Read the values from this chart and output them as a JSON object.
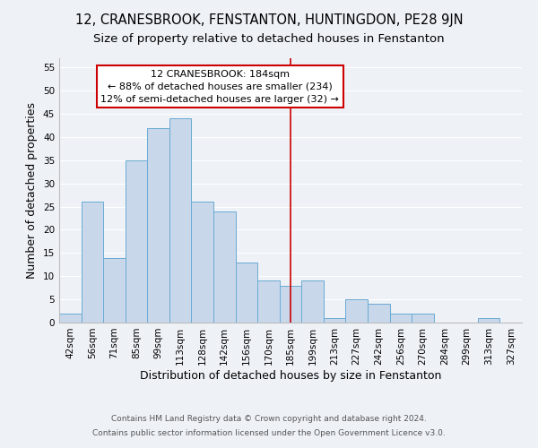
{
  "title": "12, CRANESBROOK, FENSTANTON, HUNTINGDON, PE28 9JN",
  "subtitle": "Size of property relative to detached houses in Fenstanton",
  "xlabel": "Distribution of detached houses by size in Fenstanton",
  "ylabel": "Number of detached properties",
  "footer_line1": "Contains HM Land Registry data © Crown copyright and database right 2024.",
  "footer_line2": "Contains public sector information licensed under the Open Government Licence v3.0.",
  "bin_labels": [
    "42sqm",
    "56sqm",
    "71sqm",
    "85sqm",
    "99sqm",
    "113sqm",
    "128sqm",
    "142sqm",
    "156sqm",
    "170sqm",
    "185sqm",
    "199sqm",
    "213sqm",
    "227sqm",
    "242sqm",
    "256sqm",
    "270sqm",
    "284sqm",
    "299sqm",
    "313sqm",
    "327sqm"
  ],
  "bar_values": [
    2,
    26,
    14,
    35,
    42,
    44,
    26,
    24,
    13,
    9,
    8,
    9,
    1,
    5,
    4,
    2,
    2,
    0,
    0,
    1,
    0
  ],
  "bar_color": "#c8d8ea",
  "bar_edge_color": "#6aaad4",
  "vline_x_index": 10,
  "vline_color": "#cc0000",
  "ylim": [
    0,
    57
  ],
  "yticks": [
    0,
    5,
    10,
    15,
    20,
    25,
    30,
    35,
    40,
    45,
    50,
    55
  ],
  "annotation_title": "12 CRANESBROOK: 184sqm",
  "annotation_line2": "← 88% of detached houses are smaller (234)",
  "annotation_line3": "12% of semi-detached houses are larger (32) →",
  "annotation_box_color": "#cc0000",
  "background_color": "#eef2f7",
  "grid_color": "#ffffff",
  "title_fontsize": 10.5,
  "subtitle_fontsize": 9.5,
  "axis_label_fontsize": 9,
  "tick_fontsize": 7.5,
  "annotation_fontsize": 8,
  "footer_fontsize": 6.5
}
